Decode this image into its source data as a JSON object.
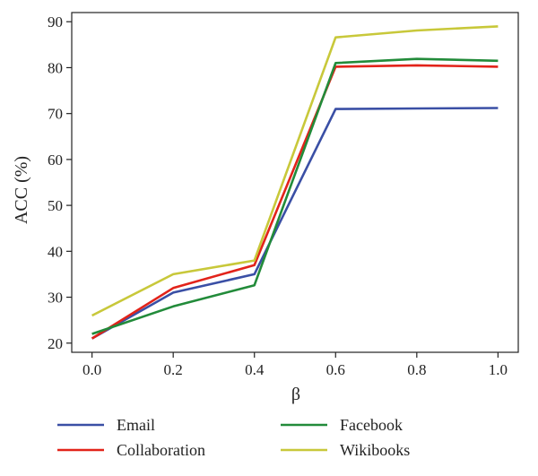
{
  "chart_data": {
    "type": "line",
    "xlabel": "β",
    "ylabel": "ACC (%)",
    "x": [
      0.0,
      0.2,
      0.4,
      0.6,
      0.8,
      1.0
    ],
    "x_tick_labels": [
      "0.0",
      "0.2",
      "0.4",
      "0.6",
      "0.8",
      "1.0"
    ],
    "y_ticks": [
      20,
      30,
      40,
      50,
      60,
      70,
      80,
      90
    ],
    "xlim": [
      -0.05,
      1.05
    ],
    "ylim": [
      18,
      92
    ],
    "grid": false,
    "legend_position": "bottom",
    "series": [
      {
        "name": "Email",
        "color": "#3a4fa5",
        "values": [
          21.0,
          31.0,
          35.0,
          71.0,
          71.1,
          71.2
        ]
      },
      {
        "name": "Collaboration",
        "color": "#e2231a",
        "values": [
          21.0,
          32.0,
          37.0,
          80.2,
          80.5,
          80.2
        ]
      },
      {
        "name": "Facebook",
        "color": "#228b3a",
        "values": [
          22.0,
          28.0,
          32.6,
          81.0,
          81.9,
          81.5
        ]
      },
      {
        "name": "Wikibooks",
        "color": "#c8c83a",
        "values": [
          26.0,
          35.0,
          38.0,
          86.6,
          88.1,
          89.0
        ]
      }
    ]
  }
}
